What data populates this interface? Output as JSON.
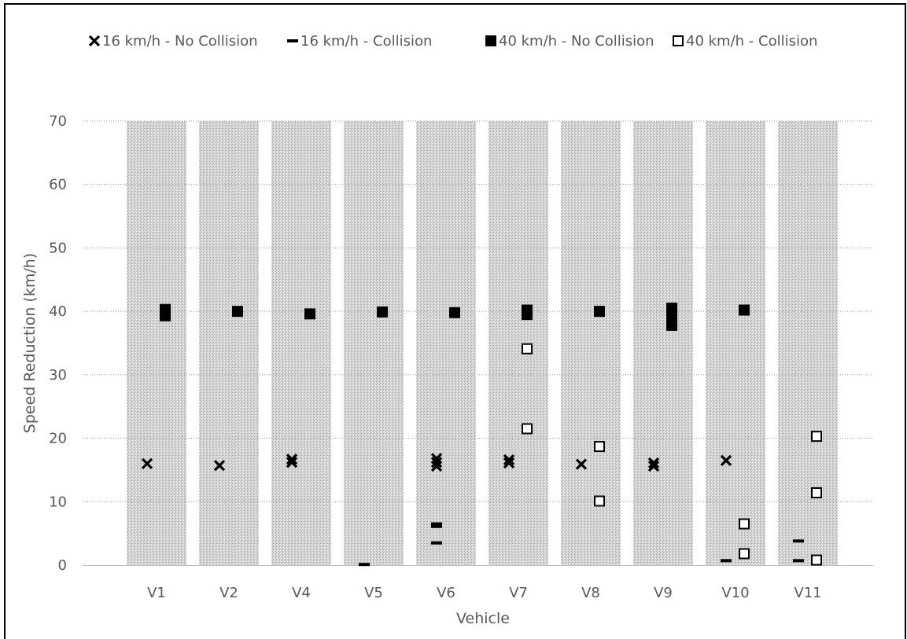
{
  "chart_data": {
    "type": "scatter",
    "title": "",
    "xlabel": "Vehicle",
    "ylabel": "Speed Reduction (km/h)",
    "ylim": [
      0,
      70
    ],
    "y_ticks": [
      0,
      10,
      20,
      30,
      40,
      50,
      60,
      70
    ],
    "grid": true,
    "legend_position": "top",
    "categories": [
      "V1",
      "V2",
      "V4",
      "V5",
      "V6",
      "V7",
      "V8",
      "V9",
      "V10",
      "V11"
    ],
    "series": [
      {
        "name": "16 km/h - No Collision",
        "marker": "x",
        "color": "#000000",
        "points": [
          {
            "x": "V1",
            "y": 16.0
          },
          {
            "x": "V2",
            "y": 15.7
          },
          {
            "x": "V4",
            "y": 16.7
          },
          {
            "x": "V4",
            "y": 16.2
          },
          {
            "x": "V6",
            "y": 16.8
          },
          {
            "x": "V6",
            "y": 16.2
          },
          {
            "x": "V6",
            "y": 15.6
          },
          {
            "x": "V7",
            "y": 16.6
          },
          {
            "x": "V7",
            "y": 16.1
          },
          {
            "x": "V8",
            "y": 15.9
          },
          {
            "x": "V9",
            "y": 16.1
          },
          {
            "x": "V9",
            "y": 15.6
          },
          {
            "x": "V10",
            "y": 16.5
          }
        ]
      },
      {
        "name": "16 km/h - Collision",
        "marker": "dash",
        "color": "#000000",
        "points": [
          {
            "x": "V5",
            "y": 0.1
          },
          {
            "x": "V6",
            "y": 6.5
          },
          {
            "x": "V6",
            "y": 6.1
          },
          {
            "x": "V6",
            "y": 3.5
          },
          {
            "x": "V10",
            "y": 0.7
          },
          {
            "x": "V11",
            "y": 3.8
          },
          {
            "x": "V11",
            "y": 0.7
          }
        ]
      },
      {
        "name": "40 km/h - No Collision",
        "marker": "filled-square",
        "color": "#000000",
        "points": [
          {
            "x": "V1",
            "y": 40.3
          },
          {
            "x": "V1",
            "y": 39.3
          },
          {
            "x": "V2",
            "y": 40.0
          },
          {
            "x": "V4",
            "y": 39.6
          },
          {
            "x": "V5",
            "y": 39.9
          },
          {
            "x": "V6",
            "y": 39.8
          },
          {
            "x": "V7",
            "y": 40.2
          },
          {
            "x": "V7",
            "y": 39.5
          },
          {
            "x": "V8",
            "y": 40.0
          },
          {
            "x": "V9",
            "y": 40.5
          },
          {
            "x": "V9",
            "y": 39.0
          },
          {
            "x": "V9",
            "y": 37.8
          },
          {
            "x": "V10",
            "y": 40.2
          }
        ]
      },
      {
        "name": "40 km/h - Collision",
        "marker": "open-square",
        "color": "#000000",
        "points": [
          {
            "x": "V7",
            "y": 34.1
          },
          {
            "x": "V7",
            "y": 21.5
          },
          {
            "x": "V8",
            "y": 18.7
          },
          {
            "x": "V8",
            "y": 10.1
          },
          {
            "x": "V10",
            "y": 6.5
          },
          {
            "x": "V10",
            "y": 1.8
          },
          {
            "x": "V11",
            "y": 20.3
          },
          {
            "x": "V11",
            "y": 11.4
          },
          {
            "x": "V11",
            "y": 0.8
          }
        ]
      }
    ]
  }
}
